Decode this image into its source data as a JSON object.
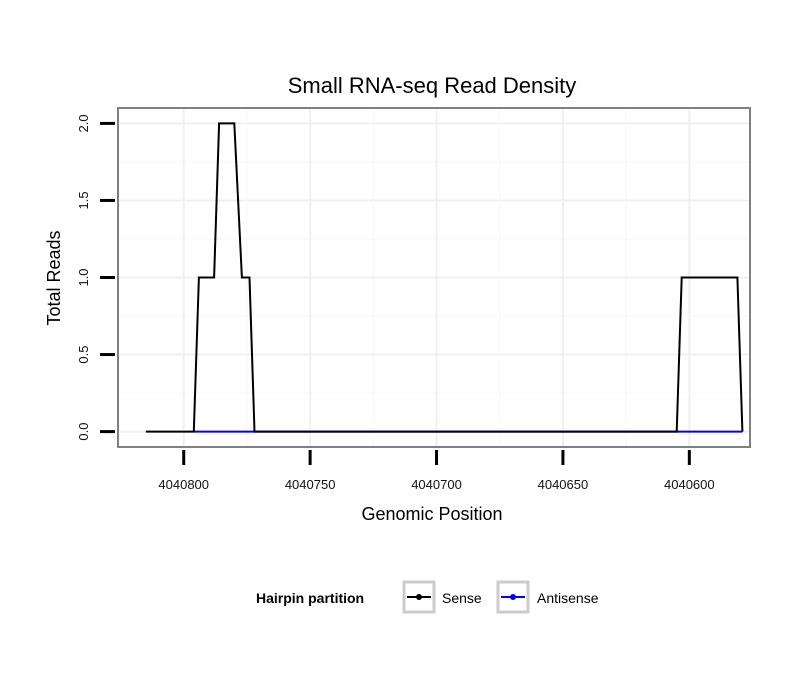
{
  "chart_data": {
    "type": "line",
    "title": "Small RNA-seq Read Density",
    "xlabel": "Genomic Position",
    "ylabel": "Total Reads",
    "x_reversed": true,
    "xlim": [
      4040826,
      4040576
    ],
    "ylim": [
      -0.1,
      2.1
    ],
    "x_ticks": [
      4040800,
      4040750,
      4040700,
      4040650,
      4040600
    ],
    "x_tick_labels": [
      "4040800",
      "4040750",
      "4040700",
      "4040650",
      "4040600"
    ],
    "y_ticks": [
      0.0,
      0.5,
      1.0,
      1.5,
      2.0
    ],
    "y_tick_labels": [
      "0.0",
      "0.5",
      "1.0",
      "1.5",
      "2.0"
    ],
    "grid": true,
    "legend": {
      "title": "Hairpin partition",
      "position": "bottom",
      "entries": [
        "Sense",
        "Antisense"
      ]
    },
    "series": [
      {
        "name": "Sense",
        "color": "#000000",
        "x": [
          4040815,
          4040796,
          4040794,
          4040788,
          4040786,
          4040780,
          4040777,
          4040774,
          4040772,
          4040751,
          4040701,
          4040651,
          4040605,
          4040603,
          4040588,
          4040581,
          4040579
        ],
        "y": [
          0,
          0,
          1,
          1,
          2,
          2,
          1,
          1,
          0,
          0,
          0,
          0,
          0,
          1,
          1,
          1,
          0
        ]
      },
      {
        "name": "Antisense",
        "color": "#0000ff",
        "x": [
          4040796,
          4040772,
          4040605,
          4040579
        ],
        "y": [
          0,
          0,
          0,
          0
        ]
      }
    ]
  }
}
